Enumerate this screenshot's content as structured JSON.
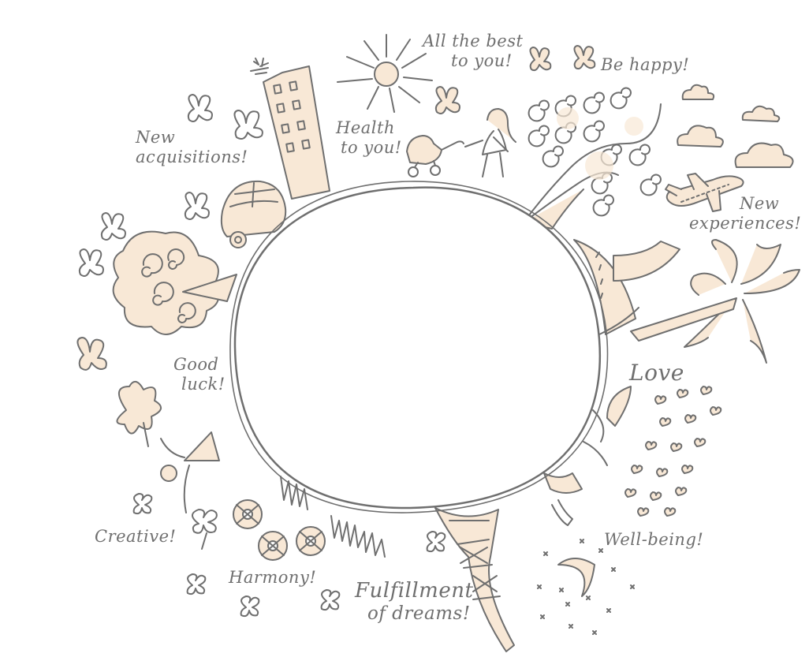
{
  "palette": {
    "ink": "#6f6f6f",
    "fill": "#f8e8d6",
    "paper": "#ffffff"
  },
  "wishes": {
    "best_1": "All the best",
    "best_2": "to you!",
    "happy": "Be happy!",
    "health_1": "Health",
    "health_2": "to you!",
    "new_acq_1": "New",
    "new_acq_2": "acquisitions!",
    "new_exp_1": "New",
    "new_exp_2": "experiences!",
    "luck_1": "Good",
    "luck_2": "luck!",
    "love": "Love",
    "creative": "Creative!",
    "wellbeing": "Well-being!",
    "harmony": "Harmony!",
    "dreams_1": "Fulfillment",
    "dreams_2": "of dreams!"
  }
}
